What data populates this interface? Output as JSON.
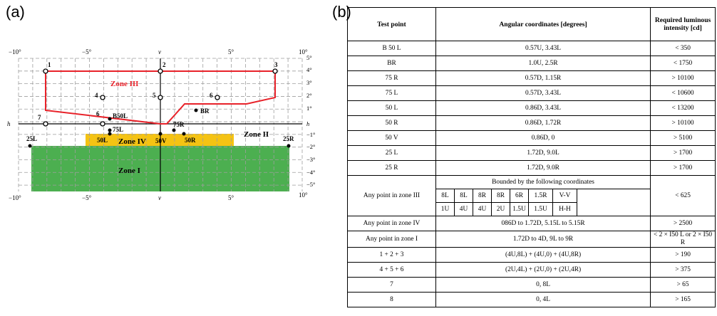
{
  "panel_a": {
    "label": "(a)",
    "degree_labels_top": [
      "−10°",
      "−5°",
      "v",
      "5°",
      "10°"
    ],
    "degree_labels_bottom": [
      "−10°",
      "−5°",
      "v",
      "5°",
      "10°"
    ],
    "right_degree_labels": [
      "5°",
      "4°",
      "3°",
      "2°",
      "1°",
      "h",
      "−1°",
      "−2°",
      "−3°",
      "−4°",
      "−5°"
    ],
    "h_left": "h",
    "zones": {
      "zone_iii": "Zone III",
      "zone_iv": "Zone IV",
      "zone_ii": "Zone II",
      "zone_i": "Zone I"
    },
    "points": [
      "1",
      "2",
      "3",
      "4",
      "5",
      "6",
      "7",
      "6",
      "B50L",
      "BR",
      "75L",
      "75R",
      "50L",
      "50V",
      "50R",
      "25L",
      "25R"
    ],
    "colors": {
      "zone_iii_line": "#e8222a",
      "zone_iv_fill": "#f5c313",
      "zone_i_fill": "#4caf50",
      "grid": "#9e9e9e"
    }
  },
  "panel_b": {
    "label": "(b)",
    "headers": [
      "Test point",
      "Angular  coordinates [degrees]",
      "Required luminous intensity [cd]"
    ],
    "rows": [
      [
        "B 50 L",
        "0.57U, 3.43L",
        "< 350"
      ],
      [
        "BR",
        "1.0U, 2.5R",
        "< 1750"
      ],
      [
        "75 R",
        "0.57D, 1.15R",
        "> 10100"
      ],
      [
        "75 L",
        "0.57D, 3.43L",
        "< 10600"
      ],
      [
        "50 L",
        "0.86D, 3.43L",
        "< 13200"
      ],
      [
        "50 R",
        "0.86D, 1.72R",
        "> 10100"
      ],
      [
        "50 V",
        "0.86D, 0",
        "> 5100"
      ],
      [
        "25 L",
        "1.72D, 9.0L",
        "> 1700"
      ],
      [
        "25 R",
        "1.72D, 9.0R",
        "> 1700"
      ]
    ],
    "zone3": {
      "label": "Any point in zone III",
      "bounded": "Bounded by the following coordinates",
      "coords_row1": [
        "8L",
        "8L",
        "8R",
        "8R",
        "6R",
        "1.5R",
        "V-V"
      ],
      "coords_row2": [
        "1U",
        "4U",
        "4U",
        "2U",
        "1.5U",
        "1.5U",
        "H-H"
      ],
      "value": "< 625"
    },
    "rows2": [
      [
        "Any point in zone IV",
        "086D to 1.72D, 5.15L to 5.15R",
        "> 2500"
      ],
      [
        "Any point in zone  I",
        "1.72D to 4D, 9L to 9R",
        "< 2 × I50 L or 2 × I50 R"
      ],
      [
        "1 + 2 + 3",
        "(4U,8L) + (4U,0) + (4U,8R)",
        "> 190"
      ],
      [
        "4 + 5 + 6",
        "(2U,4L) + (2U,0) + (2U,4R)",
        "> 375"
      ],
      [
        "7",
        "0, 8L",
        "> 65"
      ],
      [
        "8",
        "0, 4L",
        "> 165"
      ]
    ]
  }
}
